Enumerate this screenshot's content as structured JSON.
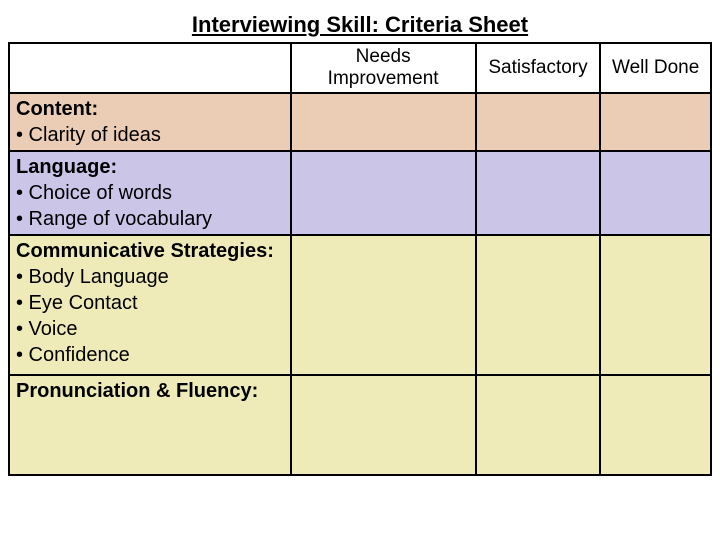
{
  "title": "Interviewing Skill:  Criteria Sheet",
  "columns": [
    "",
    "Needs Improvement",
    "Satisfactory",
    "Well Done"
  ],
  "rows": [
    {
      "heading": "Content:",
      "items": [
        "Clarity of ideas"
      ],
      "bg": "#ebcdb6",
      "min_height": 58
    },
    {
      "heading": "Language:",
      "items": [
        "Choice of words",
        "Range of vocabulary"
      ],
      "bg": "#cbc6e8",
      "min_height": 84
    },
    {
      "heading": "Communicative Strategies:",
      "items": [
        "Body Language",
        "Eye Contact",
        "Voice",
        "Confidence"
      ],
      "bg": "#eeebb8",
      "min_height": 140
    },
    {
      "heading": "Pronunciation & Fluency:",
      "items": [],
      "bg": "#eeebb8",
      "min_height": 100
    }
  ],
  "style": {
    "title_fontsize": 22,
    "header_fontsize": 19,
    "cell_fontsize": 20,
    "border_color": "#000000",
    "background_color": "#ffffff",
    "bullet": "•"
  }
}
